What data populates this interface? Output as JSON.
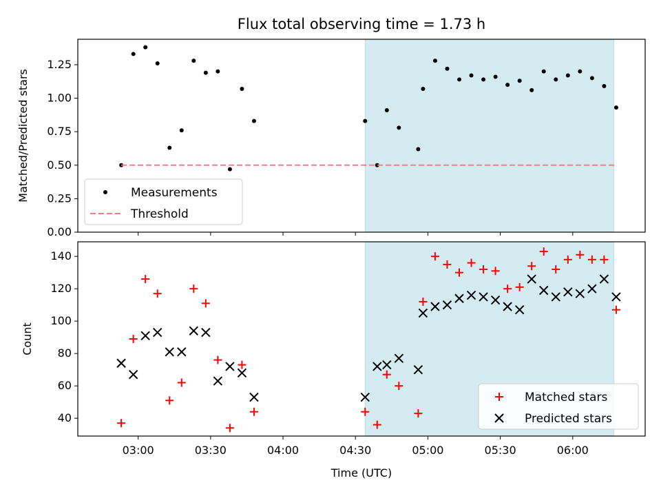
{
  "figure": {
    "title": "Flux total observing time = 1.73 h",
    "xlabel": "Time (UTC)"
  },
  "colors": {
    "shade": "#d4ebf1",
    "shade_edge": "#b9dde6",
    "measurement": "#000000",
    "threshold": "#f08080",
    "matched": "#ff0000",
    "predicted": "#000000"
  },
  "chart_data": [
    {
      "type": "scatter",
      "panel": "top",
      "ylabel": "Matched/Predicted stars",
      "ylim": [
        0,
        1.44
      ],
      "yticks": [
        0,
        0.25,
        0.5,
        0.75,
        1.0,
        1.25
      ],
      "ytick_labels": [
        "0.00",
        "0.25",
        "0.50",
        "0.75",
        "1.00",
        "1.25"
      ],
      "xlim": [
        "02:35",
        "06:30"
      ],
      "shaded_span": [
        "04:34",
        "06:17"
      ],
      "legend": {
        "position": "lower-left",
        "entries": [
          "Measurements",
          "Threshold"
        ]
      },
      "series": [
        {
          "name": "Measurements",
          "marker": "dot",
          "points": [
            [
              "02:53",
              0.5
            ],
            [
              "02:58",
              1.33
            ],
            [
              "03:03",
              1.38
            ],
            [
              "03:08",
              1.26
            ],
            [
              "03:13",
              0.63
            ],
            [
              "03:18",
              0.76
            ],
            [
              "03:23",
              1.28
            ],
            [
              "03:28",
              1.19
            ],
            [
              "03:33",
              1.2
            ],
            [
              "03:38",
              0.47
            ],
            [
              "03:43",
              1.07
            ],
            [
              "03:48",
              0.83
            ],
            [
              "04:34",
              0.83
            ],
            [
              "04:39",
              0.5
            ],
            [
              "04:43",
              0.91
            ],
            [
              "04:48",
              0.78
            ],
            [
              "04:56",
              0.62
            ],
            [
              "04:58",
              1.07
            ],
            [
              "05:03",
              1.28
            ],
            [
              "05:08",
              1.22
            ],
            [
              "05:13",
              1.14
            ],
            [
              "05:18",
              1.17
            ],
            [
              "05:23",
              1.14
            ],
            [
              "05:28",
              1.16
            ],
            [
              "05:33",
              1.1
            ],
            [
              "05:38",
              1.13
            ],
            [
              "05:43",
              1.06
            ],
            [
              "05:48",
              1.2
            ],
            [
              "05:53",
              1.14
            ],
            [
              "05:58",
              1.17
            ],
            [
              "06:03",
              1.2
            ],
            [
              "06:08",
              1.15
            ],
            [
              "06:13",
              1.09
            ],
            [
              "06:18",
              0.93
            ]
          ]
        },
        {
          "name": "Threshold",
          "style": "dashed",
          "points": [
            [
              "02:53",
              0.5
            ],
            [
              "06:18",
              0.5
            ]
          ]
        }
      ]
    },
    {
      "type": "scatter",
      "panel": "bottom",
      "ylabel": "Count",
      "ylim": [
        29,
        149
      ],
      "yticks": [
        40,
        60,
        80,
        100,
        120,
        140
      ],
      "ytick_labels": [
        "40",
        "60",
        "80",
        "100",
        "120",
        "140"
      ],
      "xlim": [
        "02:35",
        "06:30"
      ],
      "xticks": [
        "03:00",
        "03:30",
        "04:00",
        "04:30",
        "05:00",
        "05:30",
        "06:00"
      ],
      "xtick_labels": [
        "03:00",
        "03:30",
        "04:00",
        "04:30",
        "05:00",
        "05:30",
        "06:00"
      ],
      "shaded_span": [
        "04:34",
        "06:17"
      ],
      "legend": {
        "position": "lower-right",
        "entries": [
          "Matched stars",
          "Predicted stars"
        ]
      },
      "series": [
        {
          "name": "Matched stars",
          "marker": "plus",
          "points": [
            [
              "02:53",
              37
            ],
            [
              "02:58",
              89
            ],
            [
              "03:03",
              126
            ],
            [
              "03:08",
              117
            ],
            [
              "03:13",
              51
            ],
            [
              "03:18",
              62
            ],
            [
              "03:23",
              120
            ],
            [
              "03:28",
              111
            ],
            [
              "03:33",
              76
            ],
            [
              "03:38",
              34
            ],
            [
              "03:43",
              73
            ],
            [
              "03:48",
              44
            ],
            [
              "04:34",
              44
            ],
            [
              "04:39",
              36
            ],
            [
              "04:43",
              67
            ],
            [
              "04:48",
              60
            ],
            [
              "04:56",
              43
            ],
            [
              "04:58",
              112
            ],
            [
              "05:03",
              140
            ],
            [
              "05:08",
              135
            ],
            [
              "05:13",
              130
            ],
            [
              "05:18",
              136
            ],
            [
              "05:23",
              132
            ],
            [
              "05:28",
              131
            ],
            [
              "05:33",
              120
            ],
            [
              "05:38",
              121
            ],
            [
              "05:43",
              134
            ],
            [
              "05:48",
              143
            ],
            [
              "05:53",
              132
            ],
            [
              "05:58",
              138
            ],
            [
              "06:03",
              141
            ],
            [
              "06:08",
              138
            ],
            [
              "06:13",
              138
            ],
            [
              "06:18",
              107
            ]
          ]
        },
        {
          "name": "Predicted stars",
          "marker": "x",
          "points": [
            [
              "02:53",
              74
            ],
            [
              "02:58",
              67
            ],
            [
              "03:03",
              91
            ],
            [
              "03:08",
              93
            ],
            [
              "03:13",
              81
            ],
            [
              "03:18",
              81
            ],
            [
              "03:23",
              94
            ],
            [
              "03:28",
              93
            ],
            [
              "03:33",
              63
            ],
            [
              "03:38",
              72
            ],
            [
              "03:43",
              68
            ],
            [
              "03:48",
              53
            ],
            [
              "04:34",
              53
            ],
            [
              "04:39",
              72
            ],
            [
              "04:43",
              73
            ],
            [
              "04:48",
              77
            ],
            [
              "04:56",
              70
            ],
            [
              "04:58",
              105
            ],
            [
              "05:03",
              109
            ],
            [
              "05:08",
              110
            ],
            [
              "05:13",
              114
            ],
            [
              "05:18",
              116
            ],
            [
              "05:23",
              115
            ],
            [
              "05:28",
              113
            ],
            [
              "05:33",
              109
            ],
            [
              "05:38",
              107
            ],
            [
              "05:43",
              126
            ],
            [
              "05:48",
              119
            ],
            [
              "05:53",
              115
            ],
            [
              "05:58",
              118
            ],
            [
              "06:03",
              117
            ],
            [
              "06:08",
              120
            ],
            [
              "06:13",
              126
            ],
            [
              "06:18",
              115
            ]
          ]
        }
      ]
    }
  ]
}
